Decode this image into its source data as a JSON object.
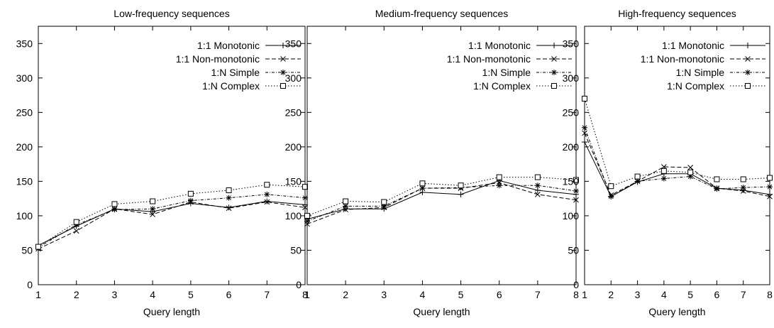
{
  "chart_data": [
    {
      "type": "line",
      "title": "Low-frequency sequences",
      "xlabel": "Query length",
      "ylabel": "",
      "xlim": [
        1,
        8
      ],
      "ylim": [
        0,
        375
      ],
      "x": [
        1,
        2,
        3,
        4,
        5,
        6,
        7,
        8
      ],
      "yticks": [
        0,
        50,
        100,
        150,
        200,
        250,
        300,
        350
      ],
      "legend_position": "top-right",
      "grid": false,
      "series": [
        {
          "name": "1:1 Monotonic",
          "marker": "plus",
          "dash": "solid",
          "values": [
            57,
            85,
            110,
            106,
            118,
            112,
            121,
            116
          ]
        },
        {
          "name": "1:1 Non-monotonic",
          "marker": "cross",
          "dash": "dashed",
          "values": [
            52,
            78,
            110,
            102,
            120,
            111,
            120,
            112
          ]
        },
        {
          "name": "1:N Simple",
          "marker": "asterisk",
          "dash": "dashdot",
          "values": [
            54,
            87,
            109,
            110,
            122,
            126,
            131,
            126
          ]
        },
        {
          "name": "1:N Complex",
          "marker": "square",
          "dash": "dotted",
          "values": [
            55,
            91,
            117,
            121,
            132,
            137,
            145,
            142
          ]
        }
      ]
    },
    {
      "type": "line",
      "title": "Medium-frequency sequences",
      "xlabel": "Query length",
      "ylabel": "",
      "xlim": [
        1,
        8
      ],
      "ylim": [
        0,
        375
      ],
      "x": [
        1,
        2,
        3,
        4,
        5,
        6,
        7,
        8
      ],
      "yticks": [
        0,
        50,
        100,
        150,
        200,
        250,
        300,
        350
      ],
      "legend_position": "top-right",
      "grid": false,
      "series": [
        {
          "name": "1:1 Monotonic",
          "marker": "plus",
          "dash": "solid",
          "values": [
            95,
            110,
            110,
            134,
            131,
            151,
            137,
            131
          ]
        },
        {
          "name": "1:1 Non-monotonic",
          "marker": "cross",
          "dash": "dashed",
          "values": [
            88,
            109,
            112,
            140,
            140,
            148,
            131,
            123
          ]
        },
        {
          "name": "1:N Simple",
          "marker": "asterisk",
          "dash": "dashdot",
          "values": [
            92,
            114,
            114,
            140,
            141,
            144,
            144,
            136
          ]
        },
        {
          "name": "1:N Complex",
          "marker": "square",
          "dash": "dotted",
          "values": [
            100,
            121,
            120,
            147,
            144,
            156,
            156,
            152
          ]
        }
      ]
    },
    {
      "type": "line",
      "title": "High-frequency sequences",
      "xlabel": "Query length",
      "ylabel": "",
      "xlim": [
        1,
        8
      ],
      "ylim": [
        0,
        375
      ],
      "x": [
        1,
        2,
        3,
        4,
        5,
        6,
        7,
        8
      ],
      "yticks": [
        0,
        50,
        100,
        150,
        200,
        250,
        300,
        350
      ],
      "legend_position": "top-right",
      "grid": false,
      "series": [
        {
          "name": "1:1 Monotonic",
          "marker": "plus",
          "dash": "solid",
          "values": [
            207,
            128,
            149,
            161,
            161,
            140,
            137,
            131
          ]
        },
        {
          "name": "1:1 Non-monotonic",
          "marker": "cross",
          "dash": "dashed",
          "values": [
            220,
            130,
            150,
            171,
            170,
            140,
            136,
            128
          ]
        },
        {
          "name": "1:N Simple",
          "marker": "asterisk",
          "dash": "dashdot",
          "values": [
            228,
            128,
            150,
            154,
            157,
            139,
            141,
            142
          ]
        },
        {
          "name": "1:N Complex",
          "marker": "square",
          "dash": "dotted",
          "values": [
            270,
            143,
            157,
            165,
            163,
            153,
            153,
            155
          ]
        }
      ]
    }
  ]
}
